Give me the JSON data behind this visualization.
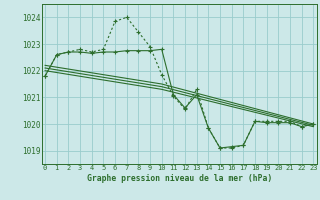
{
  "title": "Graphe pression niveau de la mer (hPa)",
  "bg_color": "#cce8e8",
  "grid_color": "#99cccc",
  "line_color": "#2d6e2d",
  "ylim": [
    1018.5,
    1024.5
  ],
  "xlim": [
    -0.3,
    23.3
  ],
  "yticks": [
    1019,
    1020,
    1021,
    1022,
    1023,
    1024
  ],
  "xticks": [
    0,
    1,
    2,
    3,
    4,
    5,
    6,
    7,
    8,
    9,
    10,
    11,
    12,
    13,
    14,
    15,
    16,
    17,
    18,
    19,
    20,
    21,
    22,
    23
  ],
  "series": [
    {
      "x": [
        0,
        1,
        2,
        3,
        4,
        5,
        6,
        7,
        8,
        9,
        10,
        11,
        12,
        13,
        14,
        15,
        16,
        17,
        18,
        19,
        20,
        21,
        22,
        23
      ],
      "y": [
        1021.8,
        1022.6,
        1022.7,
        1022.8,
        1022.7,
        1022.8,
        1023.85,
        1024.0,
        1023.45,
        1022.9,
        1021.85,
        1021.05,
        1020.55,
        1021.3,
        1019.85,
        1019.1,
        1019.1,
        1019.2,
        1020.1,
        1020.1,
        1020.1,
        1020.1,
        1019.9,
        1020.0
      ],
      "dotted": true,
      "marker": true
    },
    {
      "x": [
        0,
        1,
        2,
        3,
        4,
        5,
        6,
        7,
        8,
        9,
        10,
        11,
        12,
        13,
        14,
        15,
        16,
        17,
        18,
        19,
        20,
        21,
        22,
        23
      ],
      "y": [
        1021.8,
        1022.6,
        1022.7,
        1022.7,
        1022.65,
        1022.7,
        1022.7,
        1022.75,
        1022.75,
        1022.75,
        1022.8,
        1021.1,
        1020.6,
        1021.1,
        1019.85,
        1019.1,
        1019.15,
        1019.2,
        1020.1,
        1020.05,
        1020.05,
        1020.05,
        1019.9,
        1020.0
      ],
      "dotted": false,
      "marker": true
    },
    {
      "x": [
        0,
        10,
        23
      ],
      "y": [
        1022.2,
        1021.5,
        1020.0
      ],
      "dotted": false,
      "marker": false
    },
    {
      "x": [
        0,
        10,
        23
      ],
      "y": [
        1022.1,
        1021.4,
        1019.95
      ],
      "dotted": false,
      "marker": false
    },
    {
      "x": [
        0,
        10,
        23
      ],
      "y": [
        1022.0,
        1021.3,
        1019.9
      ],
      "dotted": false,
      "marker": false
    }
  ]
}
